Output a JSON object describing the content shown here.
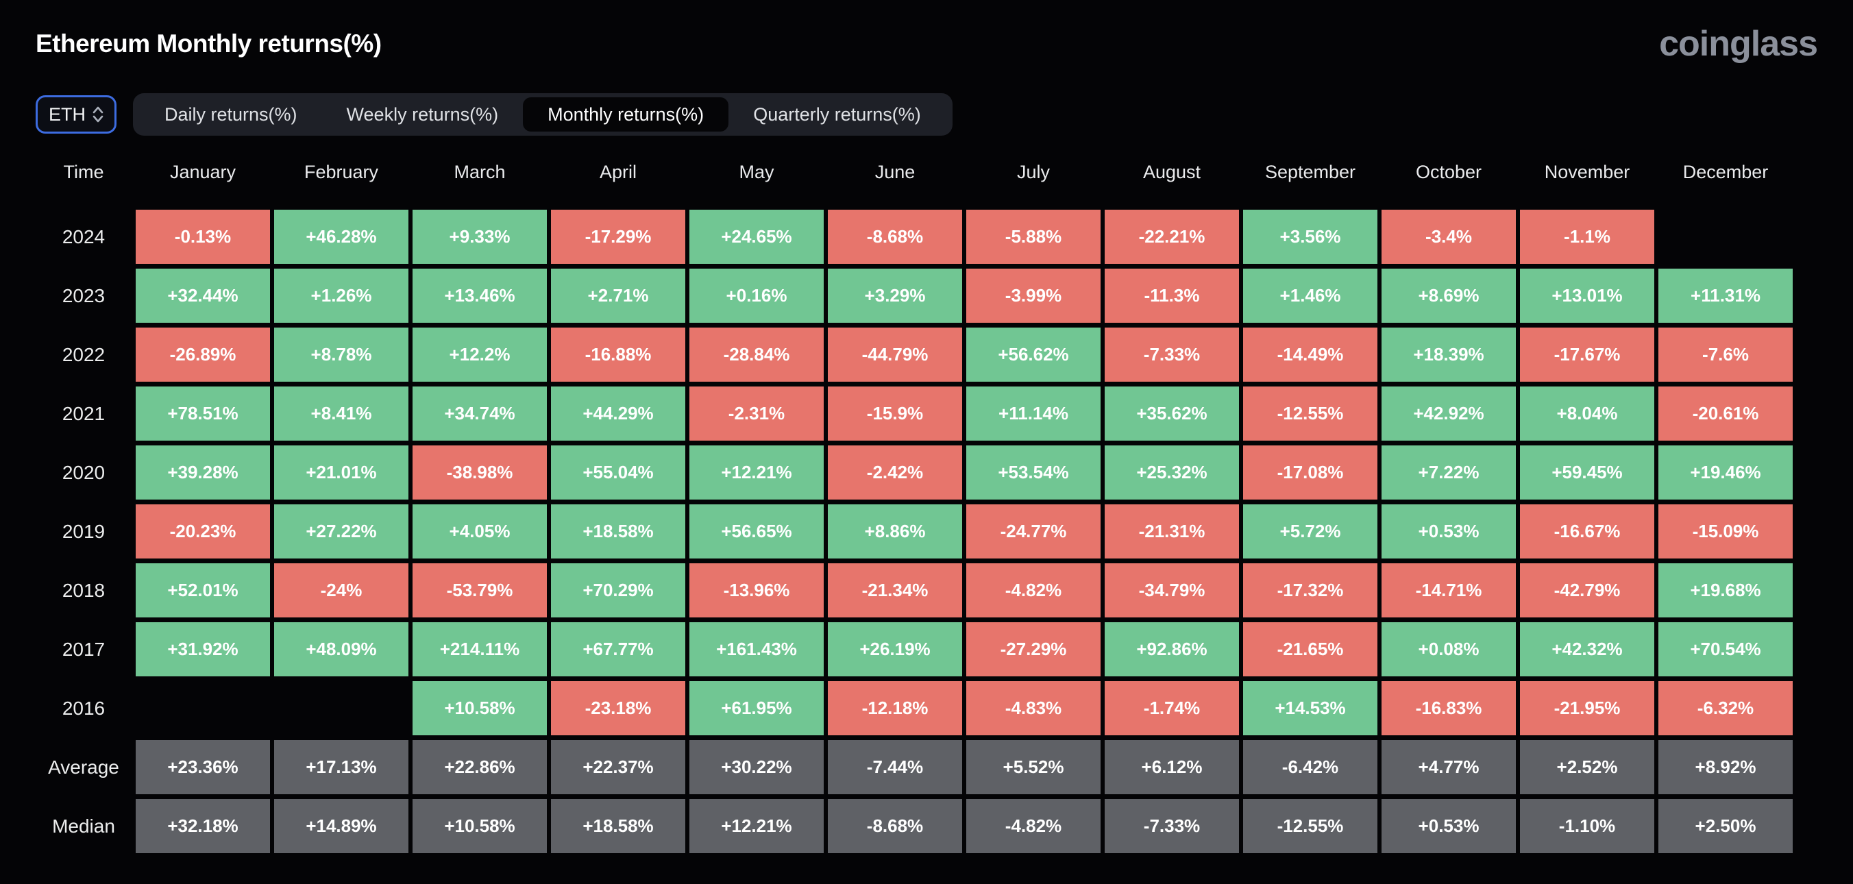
{
  "header": {
    "title": "Ethereum Monthly returns(%)",
    "logo_text": "coinglass"
  },
  "controls": {
    "symbol_select": {
      "value": "ETH"
    },
    "tabs": [
      {
        "label": "Daily returns(%)",
        "active": false
      },
      {
        "label": "Weekly returns(%)",
        "active": false
      },
      {
        "label": "Monthly returns(%)",
        "active": true
      },
      {
        "label": "Quarterly returns(%)",
        "active": false
      }
    ]
  },
  "table": {
    "time_header": "Time",
    "months": [
      "January",
      "February",
      "March",
      "April",
      "May",
      "June",
      "July",
      "August",
      "September",
      "October",
      "November",
      "December"
    ],
    "rows": [
      {
        "label": "2024",
        "type": "year",
        "values": [
          "-0.13%",
          "+46.28%",
          "+9.33%",
          "-17.29%",
          "+24.65%",
          "-8.68%",
          "-5.88%",
          "-22.21%",
          "+3.56%",
          "-3.4%",
          "-1.1%",
          ""
        ]
      },
      {
        "label": "2023",
        "type": "year",
        "values": [
          "+32.44%",
          "+1.26%",
          "+13.46%",
          "+2.71%",
          "+0.16%",
          "+3.29%",
          "-3.99%",
          "-11.3%",
          "+1.46%",
          "+8.69%",
          "+13.01%",
          "+11.31%"
        ]
      },
      {
        "label": "2022",
        "type": "year",
        "values": [
          "-26.89%",
          "+8.78%",
          "+12.2%",
          "-16.88%",
          "-28.84%",
          "-44.79%",
          "+56.62%",
          "-7.33%",
          "-14.49%",
          "+18.39%",
          "-17.67%",
          "-7.6%"
        ]
      },
      {
        "label": "2021",
        "type": "year",
        "values": [
          "+78.51%",
          "+8.41%",
          "+34.74%",
          "+44.29%",
          "-2.31%",
          "-15.9%",
          "+11.14%",
          "+35.62%",
          "-12.55%",
          "+42.92%",
          "+8.04%",
          "-20.61%"
        ]
      },
      {
        "label": "2020",
        "type": "year",
        "values": [
          "+39.28%",
          "+21.01%",
          "-38.98%",
          "+55.04%",
          "+12.21%",
          "-2.42%",
          "+53.54%",
          "+25.32%",
          "-17.08%",
          "+7.22%",
          "+59.45%",
          "+19.46%"
        ]
      },
      {
        "label": "2019",
        "type": "year",
        "values": [
          "-20.23%",
          "+27.22%",
          "+4.05%",
          "+18.58%",
          "+56.65%",
          "+8.86%",
          "-24.77%",
          "-21.31%",
          "+5.72%",
          "+0.53%",
          "-16.67%",
          "-15.09%"
        ]
      },
      {
        "label": "2018",
        "type": "year",
        "values": [
          "+52.01%",
          "-24%",
          "-53.79%",
          "+70.29%",
          "-13.96%",
          "-21.34%",
          "-4.82%",
          "-34.79%",
          "-17.32%",
          "-14.71%",
          "-42.79%",
          "+19.68%"
        ]
      },
      {
        "label": "2017",
        "type": "year",
        "values": [
          "+31.92%",
          "+48.09%",
          "+214.11%",
          "+67.77%",
          "+161.43%",
          "+26.19%",
          "-27.29%",
          "+92.86%",
          "-21.65%",
          "+0.08%",
          "+42.32%",
          "+70.54%"
        ]
      },
      {
        "label": "2016",
        "type": "year",
        "values": [
          "",
          "",
          "+10.58%",
          "-23.18%",
          "+61.95%",
          "-12.18%",
          "-4.83%",
          "-1.74%",
          "+14.53%",
          "-16.83%",
          "-21.95%",
          "-6.32%"
        ]
      },
      {
        "label": "Average",
        "type": "summary",
        "values": [
          "+23.36%",
          "+17.13%",
          "+22.86%",
          "+22.37%",
          "+30.22%",
          "-7.44%",
          "+5.52%",
          "+6.12%",
          "-6.42%",
          "+4.77%",
          "+2.52%",
          "+8.92%"
        ]
      },
      {
        "label": "Median",
        "type": "summary",
        "values": [
          "+32.18%",
          "+14.89%",
          "+10.58%",
          "+18.58%",
          "+12.21%",
          "-8.68%",
          "-4.82%",
          "-7.33%",
          "-12.55%",
          "+0.53%",
          "-1.10%",
          "+2.50%"
        ]
      }
    ]
  },
  "colors": {
    "positive": "#71c693",
    "negative": "#e7756c",
    "summary": "#5f6166",
    "accent_blue": "#3d6ce0",
    "background": "#040406",
    "logo_gray": "#8b909b"
  }
}
